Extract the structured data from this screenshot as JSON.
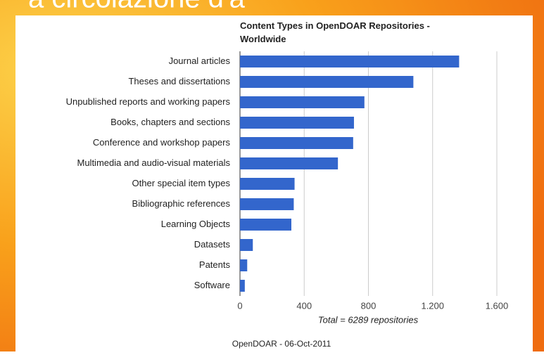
{
  "slide": {
    "heading": "a circolazione d'a"
  },
  "chart_data": {
    "type": "hbar",
    "title": "Content Types in OpenDOAR Repositories - Worldwide",
    "categories": [
      "Journal articles",
      "Theses and dissertations",
      "Unpublished reports and working papers",
      "Books, chapters and sections",
      "Conference and workshop papers",
      "Multimedia and audio-visual materials",
      "Other special item types",
      "Bibliographic references",
      "Learning Objects",
      "Datasets",
      "Patents",
      "Software"
    ],
    "values": [
      1365,
      1080,
      775,
      710,
      705,
      610,
      340,
      335,
      320,
      80,
      45,
      30
    ],
    "color": "#3366cc",
    "xlim": [
      0,
      1600
    ],
    "xticks": [
      0,
      400,
      800,
      {
        "value": 1200,
        "label": "1.200"
      },
      {
        "value": 1600,
        "label": "1.600"
      }
    ],
    "x_label": "Total = 6289 repositories",
    "grid": true,
    "source": "OpenDOAR - 06-Oct-2011"
  }
}
